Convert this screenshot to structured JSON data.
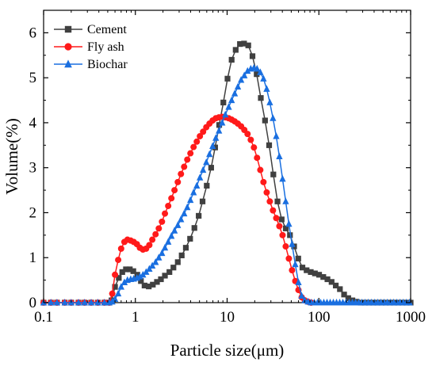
{
  "chart_data": {
    "type": "line",
    "title": "",
    "xlabel": "Particle size(μm)",
    "ylabel": "Volume(%)",
    "x_scale": "log",
    "xlim": [
      0.1,
      1000
    ],
    "ylim": [
      0,
      6.5
    ],
    "x_ticks": [
      "0.1",
      "1",
      "10",
      "100",
      "1000"
    ],
    "y_ticks": [
      "0",
      "1",
      "2",
      "3",
      "4",
      "5",
      "6"
    ],
    "grid": false,
    "legend_position": "top-left",
    "series": [
      {
        "name": "Cement",
        "color": "#404040",
        "marker": "square",
        "x": [
          0.1,
          0.12,
          0.14,
          0.17,
          0.2,
          0.24,
          0.28,
          0.33,
          0.39,
          0.46,
          0.52,
          0.55,
          0.6,
          0.66,
          0.72,
          0.79,
          0.87,
          0.95,
          1.05,
          1.15,
          1.26,
          1.4,
          1.55,
          1.72,
          1.9,
          2.1,
          2.35,
          2.6,
          2.9,
          3.2,
          3.55,
          3.95,
          4.4,
          4.9,
          5.4,
          6.0,
          6.7,
          7.4,
          8.2,
          9.1,
          10.1,
          11.2,
          12.4,
          13.8,
          15.3,
          17.0,
          18.9,
          21.0,
          23.3,
          25.9,
          28.7,
          31.9,
          35.4,
          39.3,
          43.6,
          48.4,
          53.7,
          59.6,
          66.2,
          73.5,
          81.6,
          90.6,
          100.6,
          111.7,
          124,
          137.6,
          152.8,
          169.6,
          188.3,
          209,
          232,
          257.6,
          286,
          317.5,
          352.5,
          391.3,
          434.4,
          482.3,
          535.4,
          594.4,
          660,
          732.6,
          813.4,
          903,
          1000
        ],
        "y": [
          0,
          0,
          0,
          0,
          0,
          0,
          0,
          0,
          0,
          0,
          0,
          0.05,
          0.35,
          0.55,
          0.68,
          0.74,
          0.74,
          0.7,
          0.62,
          0.48,
          0.38,
          0.36,
          0.4,
          0.46,
          0.52,
          0.6,
          0.68,
          0.78,
          0.9,
          1.05,
          1.22,
          1.42,
          1.66,
          1.93,
          2.25,
          2.6,
          3.0,
          3.45,
          3.95,
          4.45,
          4.98,
          5.4,
          5.62,
          5.75,
          5.76,
          5.72,
          5.48,
          5.08,
          4.55,
          4.05,
          3.5,
          2.85,
          2.25,
          1.85,
          1.65,
          1.5,
          1.25,
          0.98,
          0.78,
          0.72,
          0.68,
          0.65,
          0.62,
          0.57,
          0.52,
          0.46,
          0.38,
          0.3,
          0.18,
          0.1,
          0.05,
          0.02,
          0,
          0,
          0,
          0,
          0,
          0,
          0,
          0,
          0,
          0,
          0,
          0,
          0
        ]
      },
      {
        "name": "Fly ash",
        "color": "#ff1a1a",
        "marker": "circle",
        "x": [
          0.1,
          0.12,
          0.14,
          0.17,
          0.2,
          0.24,
          0.28,
          0.33,
          0.39,
          0.46,
          0.52,
          0.56,
          0.6,
          0.65,
          0.7,
          0.76,
          0.82,
          0.89,
          0.96,
          1.04,
          1.12,
          1.21,
          1.31,
          1.42,
          1.53,
          1.66,
          1.8,
          1.95,
          2.1,
          2.28,
          2.47,
          2.67,
          2.9,
          3.14,
          3.4,
          3.68,
          3.98,
          4.31,
          4.67,
          5.05,
          5.47,
          5.93,
          6.42,
          6.95,
          7.53,
          8.15,
          8.83,
          9.56,
          10.4,
          11.2,
          12.1,
          13.1,
          14.2,
          15.4,
          16.7,
          18.1,
          19.6,
          21.2,
          23.0,
          24.9,
          27.0,
          29.2,
          31.6,
          34.3,
          37.1,
          40.2,
          43.5,
          47.1,
          51.0,
          55.3,
          59.9,
          64.9,
          70.2,
          76.0,
          82.3
        ],
        "y": [
          0,
          0,
          0,
          0,
          0,
          0,
          0,
          0,
          0,
          0,
          0,
          0.2,
          0.62,
          0.95,
          1.2,
          1.35,
          1.4,
          1.38,
          1.35,
          1.3,
          1.22,
          1.18,
          1.2,
          1.28,
          1.4,
          1.52,
          1.65,
          1.8,
          1.98,
          2.15,
          2.32,
          2.5,
          2.68,
          2.86,
          3.02,
          3.18,
          3.32,
          3.46,
          3.58,
          3.7,
          3.8,
          3.9,
          3.98,
          4.05,
          4.1,
          4.12,
          4.13,
          4.12,
          4.1,
          4.07,
          4.03,
          3.98,
          3.92,
          3.84,
          3.75,
          3.62,
          3.45,
          3.22,
          2.95,
          2.68,
          2.45,
          2.25,
          2.05,
          1.88,
          1.7,
          1.5,
          1.25,
          0.98,
          0.72,
          0.48,
          0.28,
          0.12,
          0.05,
          0.02,
          0
        ]
      },
      {
        "name": "Biochar",
        "color": "#1a6fe0",
        "marker": "triangle",
        "x": [
          0.1,
          0.12,
          0.14,
          0.17,
          0.2,
          0.24,
          0.28,
          0.33,
          0.39,
          0.46,
          0.52,
          0.56,
          0.6,
          0.65,
          0.7,
          0.76,
          0.82,
          0.89,
          0.96,
          1.04,
          1.12,
          1.21,
          1.31,
          1.42,
          1.53,
          1.66,
          1.8,
          1.95,
          2.1,
          2.28,
          2.47,
          2.67,
          2.9,
          3.14,
          3.4,
          3.68,
          3.98,
          4.31,
          4.67,
          5.05,
          5.47,
          5.93,
          6.42,
          6.95,
          7.53,
          8.15,
          8.83,
          9.56,
          10.4,
          11.2,
          12.1,
          13.1,
          14.2,
          15.4,
          16.7,
          18.1,
          19.6,
          21.2,
          23.0,
          24.9,
          27.0,
          29.2,
          31.6,
          34.3,
          37.1,
          40.2,
          43.5,
          47.1,
          51.0,
          55.3,
          59.9,
          64.9,
          70.2,
          76.0,
          82.3,
          89.1,
          96.5,
          104.5,
          113.2,
          122.6,
          132.8,
          143.8,
          155.7,
          168.6,
          182.6,
          197.7,
          214.1,
          231.9,
          251.1,
          271.9,
          294.5,
          318.9,
          345.4,
          374.0,
          405.0,
          438.6,
          475.0,
          514.4,
          557.0,
          603.2,
          653.2,
          707.4,
          766.1,
          829.6,
          898.4,
          972.9
        ],
        "y": [
          0,
          0,
          0,
          0,
          0,
          0,
          0,
          0,
          0,
          0,
          0,
          0.02,
          0.08,
          0.2,
          0.35,
          0.45,
          0.5,
          0.52,
          0.53,
          0.55,
          0.58,
          0.62,
          0.68,
          0.75,
          0.82,
          0.9,
          1.0,
          1.1,
          1.22,
          1.35,
          1.48,
          1.6,
          1.72,
          1.85,
          1.98,
          2.12,
          2.28,
          2.45,
          2.6,
          2.78,
          2.95,
          3.12,
          3.3,
          3.48,
          3.66,
          3.82,
          4.0,
          4.18,
          4.35,
          4.5,
          4.65,
          4.8,
          4.95,
          5.05,
          5.15,
          5.2,
          5.22,
          5.2,
          5.12,
          4.98,
          4.75,
          4.45,
          4.1,
          3.7,
          3.25,
          2.75,
          2.25,
          1.75,
          1.3,
          0.85,
          0.45,
          0.15,
          0.05,
          0.02,
          0,
          0,
          0,
          0,
          0,
          0,
          0,
          0,
          0,
          0,
          0,
          0,
          0,
          0,
          0,
          0,
          0,
          0,
          0,
          0,
          0,
          0,
          0,
          0,
          0,
          0,
          0,
          0,
          0,
          0,
          0,
          0
        ]
      }
    ]
  }
}
